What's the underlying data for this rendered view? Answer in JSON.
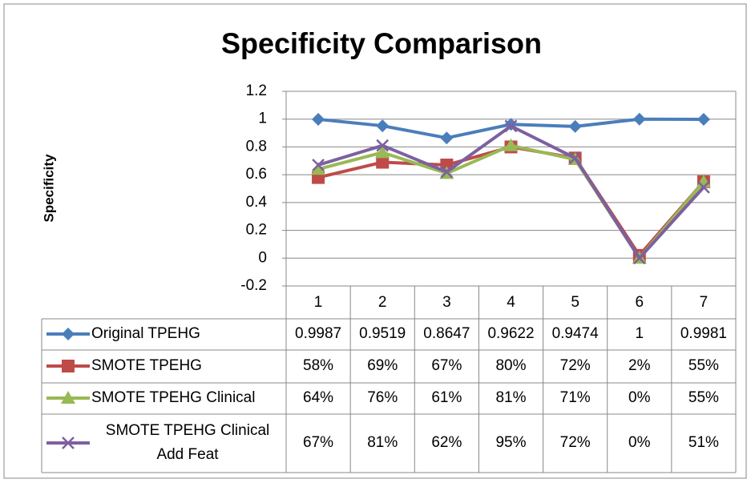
{
  "chart_data": {
    "type": "line",
    "title": "Specificity Comparison",
    "y_label": "Specificity",
    "categories": [
      "1",
      "2",
      "3",
      "4",
      "5",
      "6",
      "7"
    ],
    "ylim": [
      -0.2,
      1.2
    ],
    "yticks": [
      -0.2,
      0,
      0.2,
      0.4,
      0.6,
      0.8,
      1,
      1.2
    ],
    "grid": true,
    "series": [
      {
        "name": "Original TPEHG",
        "color": "#4a7ebb",
        "marker": "diamond",
        "values": [
          0.9987,
          0.9519,
          0.8647,
          0.9622,
          0.9474,
          1,
          0.9981
        ]
      },
      {
        "name": "SMOTE TPEHG",
        "color": "#be4b48",
        "marker": "square",
        "values": [
          0.58,
          0.69,
          0.67,
          0.8,
          0.72,
          0.02,
          0.55
        ],
        "value_labels": [
          "58%",
          "69%",
          "67%",
          "80%",
          "72%",
          "2%",
          "55%"
        ]
      },
      {
        "name": "SMOTE TPEHG Clinical",
        "color": "#98b954",
        "marker": "triangle",
        "values": [
          0.64,
          0.76,
          0.61,
          0.81,
          0.71,
          0,
          0.55
        ],
        "value_labels": [
          "64%",
          "76%",
          "61%",
          "81%",
          "71%",
          "0%",
          "55%"
        ]
      },
      {
        "name": "SMOTE TPEHG Clinical Add Feat",
        "color": "#7d60a0",
        "marker": "x",
        "values": [
          0.67,
          0.81,
          0.62,
          0.95,
          0.72,
          0,
          0.51
        ],
        "value_labels": [
          "67%",
          "81%",
          "62%",
          "95%",
          "72%",
          "0%",
          "51%"
        ]
      }
    ]
  }
}
